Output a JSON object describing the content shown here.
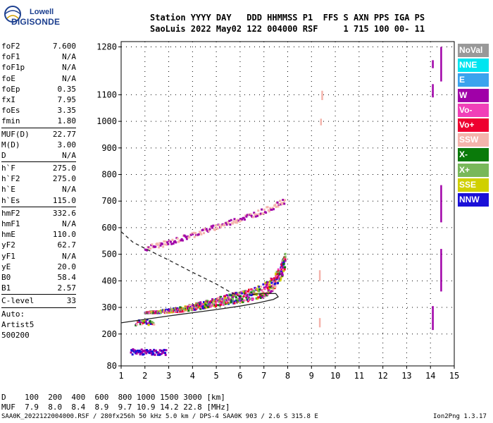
{
  "logo": {
    "line1": "Lowell",
    "line2": "DIGISONDE"
  },
  "header": {
    "line1": "Station YYYY DAY   DDD HHMMSS P1  FFS S AXN PPS IGA PS",
    "line2": "SaoLuis 2022 May02 122 004000 RSF     1 715 100 00- 11"
  },
  "params": [
    {
      "k": "foF2",
      "v": "7.600"
    },
    {
      "k": "foF1",
      "v": "N/A"
    },
    {
      "k": "foF1p",
      "v": "N/A"
    },
    {
      "k": "foE",
      "v": "N/A"
    },
    {
      "k": "foEp",
      "v": "0.35"
    },
    {
      "k": "fxI",
      "v": "7.95"
    },
    {
      "k": "foEs",
      "v": "3.35"
    },
    {
      "k": "fmin",
      "v": "1.80"
    },
    {
      "sep": true
    },
    {
      "k": "MUF(D)",
      "v": "22.77"
    },
    {
      "k": "M(D)",
      "v": "3.00"
    },
    {
      "k": "D",
      "v": "N/A"
    },
    {
      "sep": true
    },
    {
      "k": "h`F",
      "v": "275.0"
    },
    {
      "k": "h`F2",
      "v": "275.0"
    },
    {
      "k": "h`E",
      "v": "N/A"
    },
    {
      "k": "h`Es",
      "v": "115.0"
    },
    {
      "sep": true
    },
    {
      "k": "hmF2",
      "v": "332.6"
    },
    {
      "k": "hmF1",
      "v": "N/A"
    },
    {
      "k": "hmE",
      "v": "110.0"
    },
    {
      "k": "yF2",
      "v": "62.7"
    },
    {
      "k": "yF1",
      "v": "N/A"
    },
    {
      "k": "yE",
      "v": "20.0"
    },
    {
      "k": "B0",
      "v": "58.4"
    },
    {
      "k": "B1",
      "v": "2.57"
    },
    {
      "sep": true
    },
    {
      "k": "C-level",
      "v": "33"
    },
    {
      "sep": true
    },
    {
      "k": "Auto:",
      "v": ""
    },
    {
      "k": "Artist5",
      "v": ""
    },
    {
      "k": "500200",
      "v": ""
    }
  ],
  "legend": [
    {
      "label": "NoVal",
      "color": "#999999"
    },
    {
      "label": "NNE",
      "color": "#00e5f0"
    },
    {
      "label": "E",
      "color": "#3aa3ee"
    },
    {
      "label": "W",
      "color": "#a000a8"
    },
    {
      "label": "Vo-",
      "color": "#f040b8"
    },
    {
      "label": "Vo+",
      "color": "#ee0030"
    },
    {
      "label": "SSW",
      "color": "#f4b4ac"
    },
    {
      "label": "X-",
      "color": "#0a7a0a"
    },
    {
      "label": "X+",
      "color": "#78b85a"
    },
    {
      "label": "SSE",
      "color": "#d0d000"
    },
    {
      "label": "NNW",
      "color": "#1a10d8"
    }
  ],
  "bottom": {
    "line1": "D    100  200  400  600  800 1000 1500 3000 [km]",
    "line2": "MUF  7.9  8.0  8.4  8.9  9.7 10.9 14.2 22.8 [MHz]"
  },
  "footer": {
    "left": "SAA0K_2022122004000.RSF / 280fx256h 50 kHz 5.0 km / DPS-4 SAA0K 903 / 2.6 S 315.8 E",
    "right": "Ion2Png 1.3.17"
  },
  "chart_data": {
    "type": "scatter",
    "xlim": [
      1,
      15
    ],
    "ylim": [
      80,
      1300
    ],
    "x_ticks": [
      1,
      2,
      3,
      4,
      5,
      6,
      7,
      8,
      9,
      10,
      11,
      12,
      13,
      14,
      15
    ],
    "y_ticks": [
      80,
      200,
      300,
      400,
      500,
      600,
      700,
      800,
      900,
      1000,
      1100,
      1280
    ],
    "grid": true,
    "legend_position": "right",
    "traces": [
      {
        "name": "profile_solid",
        "style": "solid",
        "x": [
          1.0,
          2.0,
          3.0,
          4.0,
          5.0,
          6.0,
          6.8,
          7.4,
          7.6,
          7.5,
          7.0,
          6.5
        ],
        "y": [
          242,
          255,
          268,
          280,
          292,
          305,
          318,
          330,
          340,
          352,
          353,
          349
        ]
      },
      {
        "name": "topside_dashed",
        "style": "dashed",
        "x": [
          1.0,
          1.5,
          2.0,
          2.5,
          3.0,
          3.5,
          4.0,
          4.5,
          5.0,
          5.5,
          6.0
        ],
        "y": [
          585,
          545,
          522,
          500,
          478,
          455,
          432,
          410,
          388,
          362,
          340
        ]
      }
    ],
    "echo_bands": [
      {
        "x": [
          2.0,
          2.4,
          3.0,
          3.5,
          4.0,
          4.5,
          5.0,
          5.5,
          6.0,
          6.5,
          7.0,
          7.4,
          7.7,
          7.9
        ],
        "y": [
          280,
          282,
          285,
          290,
          298,
          305,
          315,
          325,
          332,
          340,
          355,
          380,
          420,
          470
        ]
      },
      {
        "x": [
          2.0,
          2.5,
          3.0,
          3.5,
          4.0,
          4.5,
          5.0,
          5.5,
          6.0,
          6.5,
          7.0,
          7.5,
          7.9
        ],
        "y": [
          520,
          530,
          540,
          555,
          570,
          585,
          600,
          615,
          630,
          645,
          660,
          680,
          700
        ]
      },
      {
        "x": [
          1.4,
          1.7,
          2.0,
          2.3,
          2.6,
          2.9
        ],
        "y": [
          130,
          130,
          128,
          128,
          128,
          128
        ]
      },
      {
        "x": [
          1.6,
          2.0,
          2.4
        ],
        "y": [
          240,
          242,
          240
        ]
      }
    ],
    "vertical_streaks": [
      {
        "x": 9.35,
        "y": [
          225,
          260
        ]
      },
      {
        "x": 9.35,
        "y": [
          400,
          440
        ]
      },
      {
        "x": 9.45,
        "y": [
          1080,
          1115
        ]
      },
      {
        "x": 9.4,
        "y": [
          985,
          1010
        ]
      },
      {
        "x": 14.1,
        "y": [
          215,
          305
        ]
      },
      {
        "x": 14.1,
        "y": [
          1090,
          1140
        ]
      },
      {
        "x": 14.45,
        "y": [
          620,
          760
        ]
      },
      {
        "x": 14.45,
        "y": [
          360,
          520
        ]
      },
      {
        "x": 14.45,
        "y": [
          1150,
          1280
        ]
      },
      {
        "x": 14.1,
        "y": [
          1200,
          1230
        ]
      }
    ]
  }
}
